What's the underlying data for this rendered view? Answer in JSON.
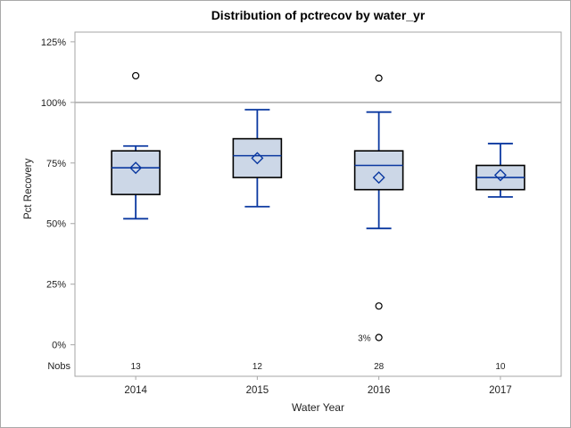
{
  "chart_data": {
    "type": "boxplot",
    "title": "Distribution of pctrecov by water_yr",
    "xlabel": "Water Year",
    "ylabel": "Pct Recovery",
    "categories": [
      "2014",
      "2015",
      "2016",
      "2017"
    ],
    "nobs_label": "Nobs",
    "nobs": [
      13,
      12,
      28,
      10
    ],
    "y_ticks": [
      0,
      25,
      50,
      75,
      100,
      125
    ],
    "y_tick_labels": [
      "0%",
      "25%",
      "50%",
      "75%",
      "100%",
      "125%"
    ],
    "ylim": [
      -13,
      129
    ],
    "reference_line": 100,
    "grid": "off",
    "legend": "none",
    "series": [
      {
        "category": "2014",
        "whisker_low": 52,
        "q1": 62,
        "median": 73,
        "mean": 73,
        "q3": 80,
        "whisker_high": 82,
        "outliers": [
          {
            "value": 111
          }
        ]
      },
      {
        "category": "2015",
        "whisker_low": 57,
        "q1": 69,
        "median": 78,
        "mean": 77,
        "q3": 85,
        "whisker_high": 97,
        "outliers": []
      },
      {
        "category": "2016",
        "whisker_low": 48,
        "q1": 64,
        "median": 74,
        "mean": 69,
        "q3": 80,
        "whisker_high": 96,
        "outliers": [
          {
            "value": 110
          },
          {
            "value": 16
          },
          {
            "value": 3,
            "label": "3%"
          }
        ]
      },
      {
        "category": "2017",
        "whisker_low": 61,
        "q1": 64,
        "median": 69,
        "mean": 70,
        "q3": 74,
        "whisker_high": 83,
        "outliers": []
      }
    ],
    "colors": {
      "box_fill": "#ccd7e7",
      "box_border": "#000000",
      "line": "#0a38a0",
      "reference_line": "#aaaaaa",
      "plot_border": "#a6a6a6",
      "axis_text": "#1f1f1f",
      "outlier_stroke": "#000000",
      "background": "#ffffff"
    }
  }
}
